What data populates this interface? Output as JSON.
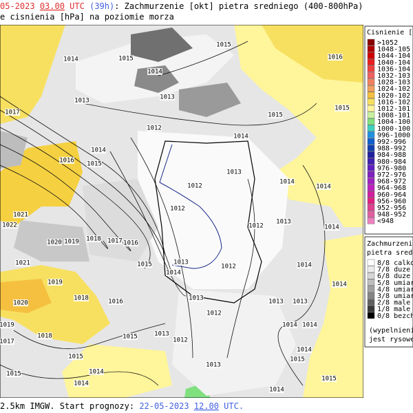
{
  "header": {
    "date": "05-2023",
    "time": "03.00",
    "utc": "UTC",
    "lead": "(39h)",
    "title": ": Zachmurzenie [okt] pietra sredniego (400-800hPa)",
    "subtitle": "e cisnienia [hPa] na poziomie morza"
  },
  "footer": {
    "text": "2.5km IMGW. Start prognozy:",
    "date": "22-05-2023",
    "time": "12.00",
    "utc": "UTC."
  },
  "isobar_labels": [
    "1015",
    "1014",
    "1015",
    "1016",
    "1014",
    "1013",
    "1013",
    "1015",
    "1015",
    "1017",
    "1012",
    "1014",
    "1014",
    "1016",
    "1015",
    "1013",
    "1012",
    "1014",
    "1014",
    "1012",
    "1021",
    "1022",
    "1012",
    "1013",
    "1014",
    "1020",
    "1019",
    "1018",
    "1017",
    "1016",
    "1021",
    "1015",
    "1013",
    "1012",
    "1014",
    "1014",
    "1014",
    "1019",
    "1020",
    "1018",
    "1016",
    "1013",
    "1013",
    "1013",
    "1012",
    "1019",
    "1014",
    "1014",
    "1018",
    "1013",
    "1012",
    "1015",
    "1017",
    "1015",
    "1013",
    "1014",
    "1015",
    "1015",
    "1014",
    "1014",
    "1014",
    "1015"
  ],
  "legend_pressure": {
    "title": "Cisnienie [hP",
    "items": [
      {
        "label": ">1052",
        "color": "#8b0000"
      },
      {
        "label": "1048-105",
        "color": "#b00000"
      },
      {
        "label": "1044-104",
        "color": "#d00000"
      },
      {
        "label": "1040-104",
        "color": "#e82020"
      },
      {
        "label": "1036-104",
        "color": "#f04040"
      },
      {
        "label": "1032-103",
        "color": "#f06060"
      },
      {
        "label": "1028-103",
        "color": "#f08060"
      },
      {
        "label": "1024-102",
        "color": "#f0a060"
      },
      {
        "label": "1020-102",
        "color": "#f5c040"
      },
      {
        "label": "1016-102",
        "color": "#f7e060"
      },
      {
        "label": "1012-101",
        "color": "#fff59a"
      },
      {
        "label": "1008-101",
        "color": "#c8f0a0"
      },
      {
        "label": "1004-100",
        "color": "#80e080"
      },
      {
        "label": "1000-100",
        "color": "#40d0c0"
      },
      {
        "label": "996-1000",
        "color": "#2090e0"
      },
      {
        "label": "992-996",
        "color": "#1060d0"
      },
      {
        "label": "988-992",
        "color": "#1040b0"
      },
      {
        "label": "984-988",
        "color": "#2020a0"
      },
      {
        "label": "980-984",
        "color": "#4020b0"
      },
      {
        "label": "976-980",
        "color": "#6020c0"
      },
      {
        "label": "972-976",
        "color": "#8020c0"
      },
      {
        "label": "968-972",
        "color": "#a020c0"
      },
      {
        "label": "964-968",
        "color": "#c020c0"
      },
      {
        "label": "960-964",
        "color": "#d020a0"
      },
      {
        "label": "956-960",
        "color": "#e02080"
      },
      {
        "label": "952-956",
        "color": "#e04090"
      },
      {
        "label": "948-952",
        "color": "#e060a0"
      },
      {
        "label": "<948",
        "color": "#f080c0"
      }
    ]
  },
  "legend_cloud": {
    "title": [
      "Zachmurzenie",
      "pietra srednie"
    ],
    "items": [
      {
        "label": "8/8 calkow",
        "color": "#ffffff"
      },
      {
        "label": "7/8 duze",
        "color": "#ebebeb"
      },
      {
        "label": "6/8 duze",
        "color": "#d6d6d6"
      },
      {
        "label": "5/8 umiar",
        "color": "#bdbdbd"
      },
      {
        "label": "4/8 umiar",
        "color": "#a0a0a0"
      },
      {
        "label": "3/8 umiar",
        "color": "#858585"
      },
      {
        "label": "2/8 male",
        "color": "#606060"
      },
      {
        "label": "1/8 male",
        "color": "#3a3a3a"
      },
      {
        "label": "0/8 bezch",
        "color": "#000000"
      }
    ],
    "note": [
      "(wypelnieni",
      "jest rysowe"
    ]
  }
}
